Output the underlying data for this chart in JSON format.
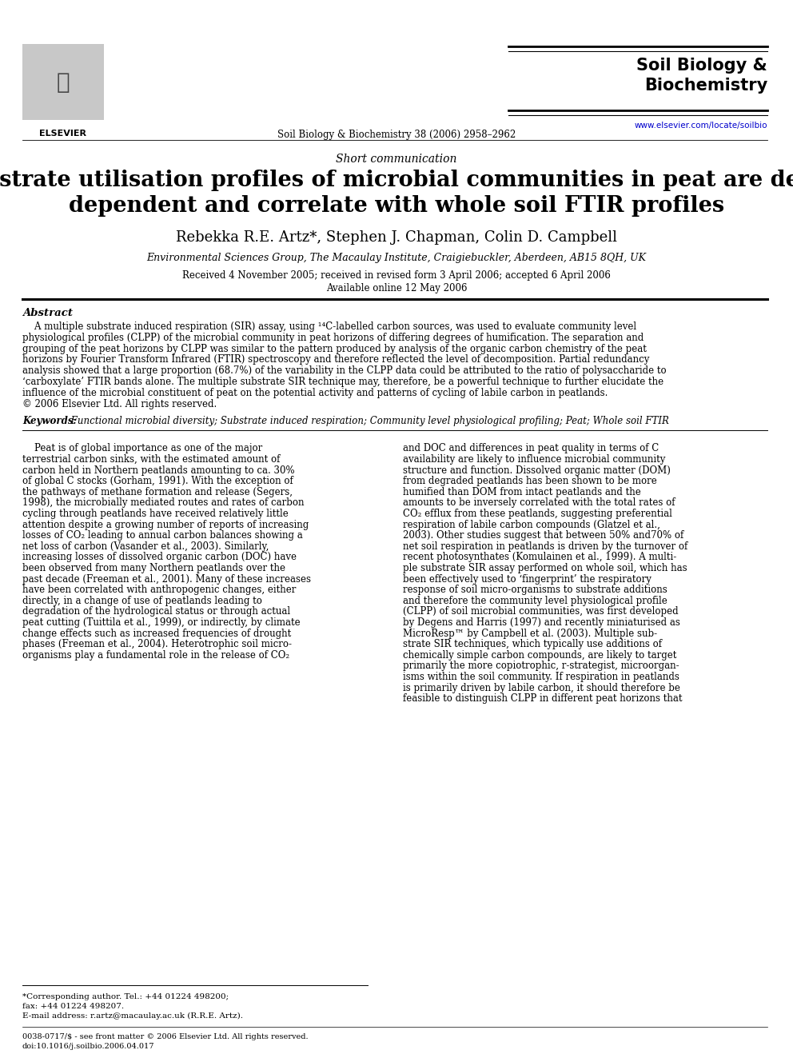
{
  "bg_color": "#ffffff",
  "journal_name": "Soil Biology &\nBiochemistry",
  "journal_url": "www.elsevier.com/locate/soilbio",
  "publisher": "Soil Biology & Biochemistry 38 (2006) 2958–2962",
  "article_type": "Short communication",
  "title_line1": "Substrate utilisation profiles of microbial communities in peat are depth",
  "title_line2": "dependent and correlate with whole soil FTIR profiles",
  "authors": "Rebekka R.E. Artz*, Stephen J. Chapman, Colin D. Campbell",
  "affiliation": "Environmental Sciences Group, The Macaulay Institute, Craigiebuckler, Aberdeen, AB15 8QH, UK",
  "received": "Received 4 November 2005; received in revised form 3 April 2006; accepted 6 April 2006",
  "available": "Available online 12 May 2006",
  "abstract_heading": "Abstract",
  "keywords_label": "Keywords:",
  "keywords_text": " Functional microbial diversity; Substrate induced respiration; Community level physiological profiling; Peat; Whole soil FTIR",
  "footer_note1": "*Corresponding author. Tel.: +44 01224 498200;",
  "footer_note2": "fax: +44 01224 498207.",
  "footer_note3": "E-mail address: r.artz@macaulay.ac.uk (R.R.E. Artz).",
  "footer_line1": "0038-0717/$ - see front matter © 2006 Elsevier Ltd. All rights reserved.",
  "footer_line2": "doi:10.1016/j.soilbio.2006.04.017",
  "abstract_lines": [
    "    A multiple substrate induced respiration (SIR) assay, using ¹⁴C-labelled carbon sources, was used to evaluate community level",
    "physiological profiles (CLPP) of the microbial community in peat horizons of differing degrees of humification. The separation and",
    "grouping of the peat horizons by CLPP was similar to the pattern produced by analysis of the organic carbon chemistry of the peat",
    "horizons by Fourier Transform Infrared (FTIR) spectroscopy and therefore reflected the level of decomposition. Partial redundancy",
    "analysis showed that a large proportion (68.7%) of the variability in the CLPP data could be attributed to the ratio of polysaccharide to",
    "‘carboxylate’ FTIR bands alone. The multiple substrate SIR technique may, therefore, be a powerful technique to further elucidate the",
    "influence of the microbial constituent of peat on the potential activity and patterns of cycling of labile carbon in peatlands.",
    "© 2006 Elsevier Ltd. All rights reserved."
  ],
  "col1_lines": [
    "    Peat is of global importance as one of the major",
    "terrestrial carbon sinks, with the estimated amount of",
    "carbon held in Northern peatlands amounting to ca. 30%",
    "of global C stocks (Gorham, 1991). With the exception of",
    "the pathways of methane formation and release (Segers,",
    "1998), the microbially mediated routes and rates of carbon",
    "cycling through peatlands have received relatively little",
    "attention despite a growing number of reports of increasing",
    "losses of CO₂ leading to annual carbon balances showing a",
    "net loss of carbon (Vasander et al., 2003). Similarly,",
    "increasing losses of dissolved organic carbon (DOC) have",
    "been observed from many Northern peatlands over the",
    "past decade (Freeman et al., 2001). Many of these increases",
    "have been correlated with anthropogenic changes, either",
    "directly, in a change of use of peatlands leading to",
    "degradation of the hydrological status or through actual",
    "peat cutting (Tuittila et al., 1999), or indirectly, by climate",
    "change effects such as increased frequencies of drought",
    "phases (Freeman et al., 2004). Heterotrophic soil micro-",
    "organisms play a fundamental role in the release of CO₂"
  ],
  "col2_lines": [
    "and DOC and differences in peat quality in terms of C",
    "availability are likely to influence microbial community",
    "structure and function. Dissolved organic matter (DOM)",
    "from degraded peatlands has been shown to be more",
    "humified than DOM from intact peatlands and the",
    "amounts to be inversely correlated with the total rates of",
    "CO₂ efflux from these peatlands, suggesting preferential",
    "respiration of labile carbon compounds (Glatzel et al.,",
    "2003). Other studies suggest that between 50% and70% of",
    "net soil respiration in peatlands is driven by the turnover of",
    "recent photosynthates (Komulainen et al., 1999). A multi-",
    "ple substrate SIR assay performed on whole soil, which has",
    "been effectively used to ‘fingerprint’ the respiratory",
    "response of soil micro-organisms to substrate additions",
    "and therefore the community level physiological profile",
    "(CLPP) of soil microbial communities, was first developed",
    "by Degens and Harris (1997) and recently miniaturised as",
    "MicroResp™ by Campbell et al. (2003). Multiple sub-",
    "strate SIR techniques, which typically use additions of",
    "chemically simple carbon compounds, are likely to target",
    "primarily the more copiotrophic, r-strategist, microorgan-",
    "isms within the soil community. If respiration in peatlands",
    "is primarily driven by labile carbon, it should therefore be",
    "feasible to distinguish CLPP in different peat horizons that"
  ]
}
